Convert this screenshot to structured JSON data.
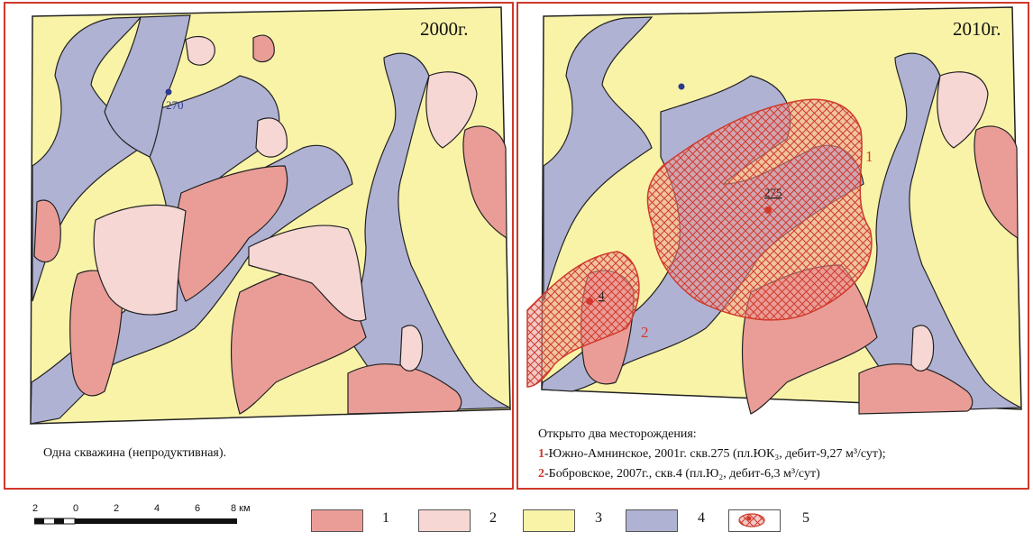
{
  "left_panel": {
    "year": "2000г.",
    "well_label": "270",
    "caption": "Одна скважина (непродуктивная)."
  },
  "right_panel": {
    "year": "2010г.",
    "deposit1_number": "1",
    "deposit2_number": "2",
    "well1_label": "275",
    "well2_label": "4",
    "caption_title": "Открыто два месторождения:",
    "caption_line1_num": "1",
    "caption_line1_text": "-Южно-Амнинское, 2001г. скв.275 (пл.ЮК₃, дебит-9,27 м³/сут);",
    "caption_line2_num": "2",
    "caption_line2_text": "-Бобровское, 2007г., скв.4 (пл.Ю₂, дебит-6,3 м³/сут)"
  },
  "scale_bar": {
    "labels": [
      "2",
      "0",
      "2",
      "4",
      "6",
      "8 км"
    ]
  },
  "legend": [
    {
      "label": "1",
      "color": "#ea9d97"
    },
    {
      "label": "2",
      "color": "#f6d7d4"
    },
    {
      "label": "3",
      "color": "#f9f3a8"
    },
    {
      "label": "4",
      "color": "#b0b2d3"
    },
    {
      "label": "5",
      "color": "#d0392b"
    }
  ],
  "colors": {
    "zone1": "#ea9d97",
    "zone2": "#f6d7d4",
    "zone3": "#f9f3a8",
    "zone4": "#b0b2d3",
    "frame": "#d0392b",
    "well": "#2b3a8f"
  }
}
